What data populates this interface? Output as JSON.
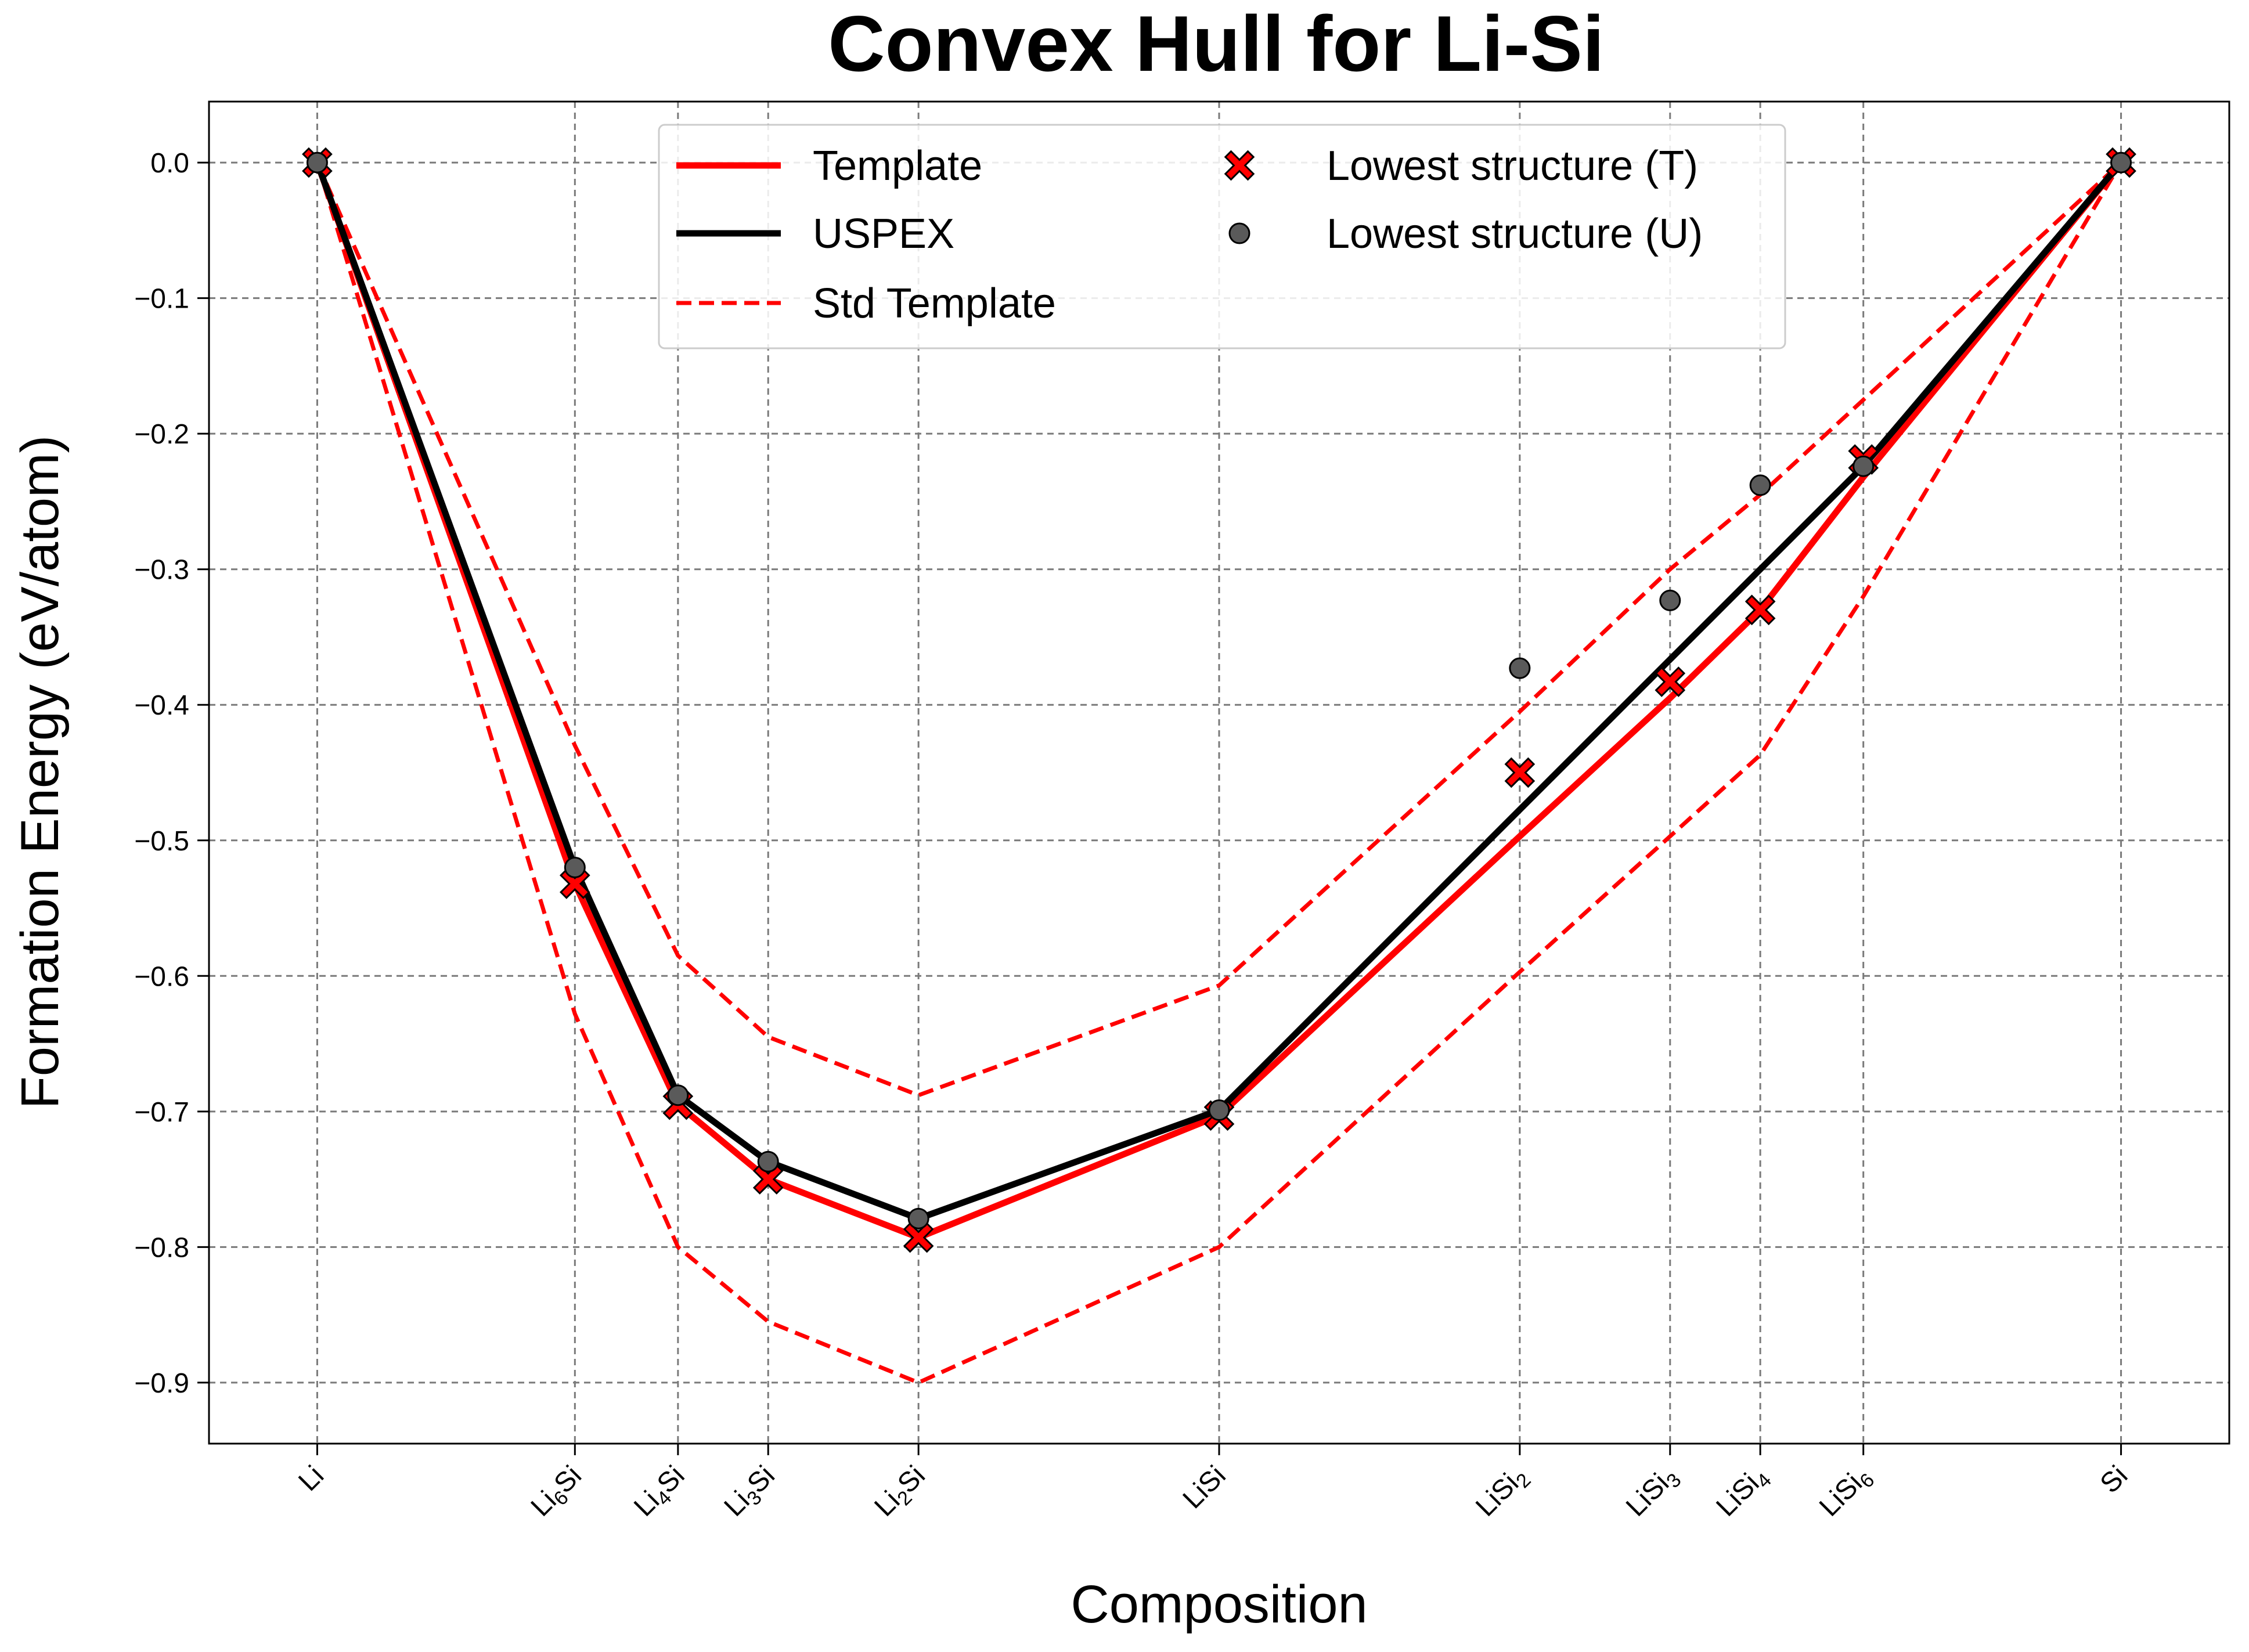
{
  "chart_data": {
    "type": "line",
    "title": "Convex Hull for Li-Si",
    "xlabel": "Composition",
    "ylabel": "Formation Energy (eV/atom)",
    "ylim": [
      -0.945,
      0.045
    ],
    "yticks": [
      0.0,
      -0.1,
      -0.2,
      -0.3,
      -0.4,
      -0.5,
      -0.6,
      -0.7,
      -0.8,
      -0.9
    ],
    "ytick_labels": [
      "0.0",
      "−0.1",
      "−0.2",
      "−0.3",
      "−0.4",
      "−0.5",
      "−0.6",
      "−0.7",
      "−0.8",
      "−0.9"
    ],
    "xlim": [
      -0.06,
      1.06
    ],
    "grid": true,
    "legend_position": "top-center",
    "categories": [
      {
        "label": "Li",
        "base": "Li",
        "sub": "",
        "tail": "",
        "x": 0.0
      },
      {
        "label": "Li6Si",
        "base": "Li",
        "sub": "6",
        "tail": "Si",
        "x": 0.142857
      },
      {
        "label": "Li4Si",
        "base": "Li",
        "sub": "4",
        "tail": "Si",
        "x": 0.2
      },
      {
        "label": "Li3Si",
        "base": "Li",
        "sub": "3",
        "tail": "Si",
        "x": 0.25
      },
      {
        "label": "Li2Si",
        "base": "Li",
        "sub": "2",
        "tail": "Si",
        "x": 0.333333
      },
      {
        "label": "LiSi",
        "base": "LiSi",
        "sub": "",
        "tail": "",
        "x": 0.5
      },
      {
        "label": "LiSi2",
        "base": "LiSi",
        "sub": "2",
        "tail": "",
        "x": 0.666667
      },
      {
        "label": "LiSi3",
        "base": "LiSi",
        "sub": "3",
        "tail": "",
        "x": 0.75
      },
      {
        "label": "LiSi4",
        "base": "LiSi",
        "sub": "4",
        "tail": "",
        "x": 0.8
      },
      {
        "label": "LiSi6",
        "base": "LiSi",
        "sub": "6",
        "tail": "",
        "x": 0.857143
      },
      {
        "label": "Si",
        "base": "Si",
        "sub": "",
        "tail": "",
        "x": 1.0
      }
    ],
    "series": [
      {
        "name": "Template",
        "kind": "line",
        "color": "#ff0000",
        "dash": "solid",
        "points": [
          [
            0.0,
            0.0
          ],
          [
            0.142857,
            -0.532
          ],
          [
            0.2,
            -0.695
          ],
          [
            0.25,
            -0.75
          ],
          [
            0.333333,
            -0.793
          ],
          [
            0.5,
            -0.703
          ],
          [
            0.666667,
            -0.497
          ],
          [
            0.75,
            -0.395
          ],
          [
            0.8,
            -0.33
          ],
          [
            0.857143,
            -0.232
          ],
          [
            1.0,
            0.0
          ]
        ]
      },
      {
        "name": "USPEX",
        "kind": "line",
        "color": "#000000",
        "dash": "solid",
        "points": [
          [
            0.0,
            0.0
          ],
          [
            0.142857,
            -0.52
          ],
          [
            0.2,
            -0.688
          ],
          [
            0.25,
            -0.737
          ],
          [
            0.333333,
            -0.779
          ],
          [
            0.5,
            -0.699
          ],
          [
            0.857143,
            -0.224
          ],
          [
            1.0,
            0.0
          ]
        ]
      },
      {
        "name": "Std Template",
        "kind": "line",
        "color": "#ff0000",
        "dash": "dashed",
        "points": [
          [
            0.0,
            0.0
          ],
          [
            0.142857,
            -0.43
          ],
          [
            0.2,
            -0.585
          ],
          [
            0.25,
            -0.645
          ],
          [
            0.333333,
            -0.688
          ],
          [
            0.5,
            -0.607
          ],
          [
            0.666667,
            -0.405
          ],
          [
            0.75,
            -0.3
          ],
          [
            0.8,
            -0.245
          ],
          [
            0.857143,
            -0.175
          ],
          [
            1.0,
            0.0
          ]
        ]
      },
      {
        "name": "",
        "kind": "line",
        "color": "#ff0000",
        "dash": "dashed",
        "points": [
          [
            0.0,
            0.0
          ],
          [
            0.142857,
            -0.628
          ],
          [
            0.2,
            -0.8
          ],
          [
            0.25,
            -0.855
          ],
          [
            0.333333,
            -0.9
          ],
          [
            0.5,
            -0.8
          ],
          [
            0.666667,
            -0.597
          ],
          [
            0.75,
            -0.497
          ],
          [
            0.8,
            -0.437
          ],
          [
            0.857143,
            -0.32
          ],
          [
            1.0,
            0.0
          ]
        ]
      },
      {
        "name": "Lowest structure (T)",
        "kind": "scatter",
        "marker": "x",
        "color": "#ff0000",
        "points": [
          [
            0.0,
            0.0
          ],
          [
            0.142857,
            -0.532
          ],
          [
            0.2,
            -0.695
          ],
          [
            0.25,
            -0.75
          ],
          [
            0.333333,
            -0.793
          ],
          [
            0.5,
            -0.703
          ],
          [
            0.666667,
            -0.45
          ],
          [
            0.75,
            -0.383
          ],
          [
            0.8,
            -0.33
          ],
          [
            0.857143,
            -0.219
          ],
          [
            1.0,
            0.0
          ]
        ]
      },
      {
        "name": "Lowest structure (U)",
        "kind": "scatter",
        "marker": "circle",
        "color": "#5a5a5a",
        "points": [
          [
            0.0,
            0.0
          ],
          [
            0.142857,
            -0.52
          ],
          [
            0.2,
            -0.688
          ],
          [
            0.25,
            -0.737
          ],
          [
            0.333333,
            -0.779
          ],
          [
            0.5,
            -0.699
          ],
          [
            0.666667,
            -0.373
          ],
          [
            0.75,
            -0.323
          ],
          [
            0.8,
            -0.238
          ],
          [
            0.857143,
            -0.224
          ],
          [
            1.0,
            0.0
          ]
        ]
      }
    ]
  }
}
